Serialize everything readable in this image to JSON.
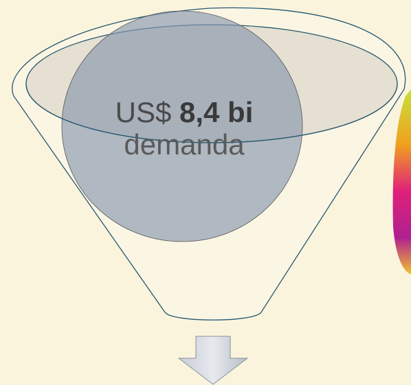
{
  "funnel": {
    "currency": "US$",
    "amount": "8,4 bi",
    "label": "demanda"
  }
}
